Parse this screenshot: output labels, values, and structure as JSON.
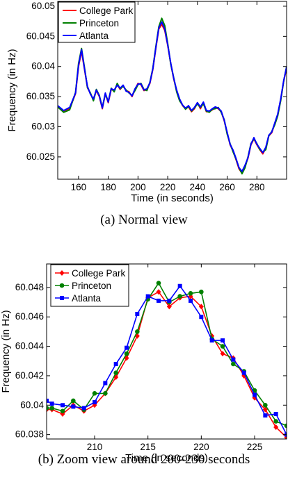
{
  "figure": {
    "caption_a": "(a)  Normal view",
    "caption_b": "(b)  Zoom view around 200-230 seconds"
  },
  "chart_data": [
    {
      "type": "line",
      "xlabel": "Time (in seconds)",
      "ylabel": "Frequency (in Hz)",
      "xlim": [
        146,
        300
      ],
      "ylim": [
        60.0213,
        60.0508
      ],
      "xticks": [
        160,
        180,
        200,
        220,
        240,
        260,
        280
      ],
      "yticks": [
        60.025,
        60.03,
        60.035,
        60.04,
        60.045,
        60.05
      ],
      "ytick_labels": [
        "60.025",
        "60.03",
        "60.035",
        "60.04",
        "60.045",
        "60.05"
      ],
      "grid": false,
      "legend_position": "top-left",
      "markers": false,
      "series": [
        {
          "name": "College Park",
          "color": "#ff0000",
          "x": [
            146,
            150,
            154,
            158,
            160,
            162,
            164,
            166,
            168,
            170,
            172,
            174,
            176,
            178,
            180,
            182,
            184,
            186,
            188,
            190,
            192,
            194,
            196,
            198,
            200,
            202,
            204,
            206,
            208,
            210,
            212,
            214,
            216,
            218,
            220,
            222,
            224,
            226,
            228,
            230,
            232,
            234,
            236,
            238,
            240,
            242,
            244,
            246,
            248,
            250,
            252,
            254,
            256,
            258,
            260,
            262,
            264,
            266,
            268,
            270,
            272,
            274,
            276,
            278,
            280,
            282,
            284,
            286,
            288,
            290,
            292,
            294,
            296,
            298,
            300
          ],
          "y": [
            60.0333,
            60.0325,
            60.033,
            60.0355,
            60.04,
            60.0425,
            60.0395,
            60.0365,
            60.0355,
            60.0345,
            60.036,
            60.035,
            60.033,
            60.0355,
            60.034,
            60.0362,
            60.036,
            60.037,
            60.0362,
            60.0368,
            60.036,
            60.0358,
            60.035,
            60.0362,
            60.0372,
            60.037,
            60.036,
            60.0362,
            60.0372,
            60.0395,
            60.043,
            60.0462,
            60.047,
            60.046,
            60.0435,
            60.0405,
            60.038,
            60.036,
            60.0345,
            60.0335,
            60.033,
            60.0333,
            60.0325,
            60.033,
            60.034,
            60.033,
            60.034,
            60.0325,
            60.0325,
            60.0328,
            60.0332,
            60.033,
            60.0325,
            60.031,
            60.029,
            60.027,
            60.026,
            60.0245,
            60.023,
            60.0223,
            60.0235,
            60.0248,
            60.027,
            60.028,
            60.027,
            60.0262,
            60.0255,
            60.0265,
            60.0285,
            60.029,
            60.0305,
            60.032,
            60.0345,
            60.0375,
            60.0397
          ]
        },
        {
          "name": "Princeton",
          "color": "#008000",
          "x": [
            146,
            150,
            154,
            158,
            160,
            162,
            164,
            166,
            168,
            170,
            172,
            174,
            176,
            178,
            180,
            182,
            184,
            186,
            188,
            190,
            192,
            194,
            196,
            198,
            200,
            202,
            204,
            206,
            208,
            210,
            212,
            214,
            216,
            218,
            220,
            222,
            224,
            226,
            228,
            230,
            232,
            234,
            236,
            238,
            240,
            242,
            244,
            246,
            248,
            250,
            252,
            254,
            256,
            258,
            260,
            262,
            264,
            266,
            268,
            270,
            272,
            274,
            276,
            278,
            280,
            282,
            284,
            286,
            288,
            290,
            292,
            294,
            296,
            298,
            300
          ],
          "y": [
            60.0333,
            60.0324,
            60.0328,
            60.0357,
            60.0405,
            60.043,
            60.0398,
            60.0365,
            60.0356,
            60.0343,
            60.0362,
            60.0352,
            60.0332,
            60.0354,
            60.0342,
            60.0364,
            60.0358,
            60.0372,
            60.0363,
            60.0367,
            60.0361,
            60.0356,
            60.0352,
            60.036,
            60.037,
            60.0372,
            60.0362,
            60.036,
            60.0374,
            60.0397,
            60.0433,
            60.0466,
            60.048,
            60.0468,
            60.0438,
            60.0404,
            60.0382,
            60.0358,
            60.0343,
            60.0336,
            60.0329,
            60.0334,
            60.0326,
            60.0331,
            60.0338,
            60.0332,
            60.0338,
            60.0326,
            60.0324,
            60.0329,
            60.033,
            60.0332,
            60.0324,
            60.0312,
            60.0288,
            60.0272,
            60.0258,
            60.0246,
            60.0232,
            60.0222,
            60.0232,
            60.025,
            60.0272,
            60.028,
            60.0272,
            60.0262,
            60.0258,
            60.0262,
            60.0285,
            60.0292,
            60.0303,
            60.0318,
            60.0343,
            60.0375,
            60.04
          ]
        },
        {
          "name": "Atlanta",
          "color": "#0000ff",
          "x": [
            146,
            150,
            154,
            158,
            160,
            162,
            164,
            166,
            168,
            170,
            172,
            174,
            176,
            178,
            180,
            182,
            184,
            186,
            188,
            190,
            192,
            194,
            196,
            198,
            200,
            202,
            204,
            206,
            208,
            210,
            212,
            214,
            216,
            218,
            220,
            222,
            224,
            226,
            228,
            230,
            232,
            234,
            236,
            238,
            240,
            242,
            244,
            246,
            248,
            250,
            252,
            254,
            256,
            258,
            260,
            262,
            264,
            266,
            268,
            270,
            272,
            274,
            276,
            278,
            280,
            282,
            284,
            286,
            288,
            290,
            292,
            294,
            296,
            298,
            300
          ],
          "y": [
            60.0335,
            60.0327,
            60.0332,
            60.0356,
            60.0402,
            60.0428,
            60.0396,
            60.0367,
            60.0354,
            60.0346,
            60.0361,
            60.0351,
            60.0331,
            60.0356,
            60.0341,
            60.0363,
            60.0361,
            60.0369,
            60.0364,
            60.0369,
            60.0359,
            60.0357,
            60.0351,
            60.0363,
            60.0371,
            60.0371,
            60.0361,
            60.0363,
            60.0373,
            60.0396,
            60.0431,
            60.0464,
            60.0474,
            60.0462,
            60.0436,
            60.0406,
            60.0381,
            60.0361,
            60.0346,
            60.0336,
            60.0331,
            60.0335,
            60.0327,
            60.0332,
            60.034,
            60.0333,
            60.0341,
            60.0327,
            60.0326,
            60.033,
            60.0333,
            60.0331,
            60.0326,
            60.0311,
            60.0291,
            60.0271,
            60.0261,
            60.0247,
            60.0232,
            60.0226,
            60.0236,
            60.0249,
            60.0271,
            60.0282,
            60.0271,
            60.0264,
            60.0257,
            60.0266,
            60.0286,
            60.0291,
            60.0306,
            60.0321,
            60.0346,
            60.0376,
            60.0399
          ]
        }
      ]
    },
    {
      "type": "line",
      "xlabel": "Time (in seconds)",
      "ylabel": "Frequency (in Hz)",
      "xlim": [
        205.5,
        228
      ],
      "ylim": [
        60.0377,
        60.0496
      ],
      "xticks": [
        210,
        215,
        220,
        225
      ],
      "yticks": [
        60.038,
        60.04,
        60.042,
        60.044,
        60.046,
        60.048
      ],
      "ytick_labels": [
        "60.038",
        "60.04",
        "60.042",
        "60.044",
        "60.046",
        "60.048"
      ],
      "grid": false,
      "legend_position": "top-left",
      "markers": true,
      "series": [
        {
          "name": "College Park",
          "color": "#ff0000",
          "marker": "diamond",
          "x": [
            205.5,
            206,
            207,
            208,
            209,
            210,
            211,
            212,
            213,
            214,
            215,
            216,
            217,
            218,
            219,
            220,
            221,
            222,
            223,
            224,
            225,
            226,
            227,
            228
          ],
          "y": [
            60.0397,
            60.0397,
            60.0394,
            60.04,
            60.0396,
            60.04,
            60.0408,
            60.0419,
            60.0432,
            60.0447,
            60.0473,
            60.0477,
            60.0467,
            60.0473,
            60.0474,
            60.0467,
            60.0447,
            60.0435,
            60.0432,
            60.042,
            60.0405,
            60.0397,
            60.0385,
            60.0378
          ]
        },
        {
          "name": "Princeton",
          "color": "#008000",
          "marker": "circle",
          "x": [
            205.5,
            206,
            207,
            208,
            209,
            210,
            211,
            212,
            213,
            214,
            215,
            216,
            217,
            218,
            219,
            220,
            221,
            222,
            223,
            224,
            225,
            226,
            227,
            228
          ],
          "y": [
            60.0398,
            60.0398,
            60.0396,
            60.0403,
            60.0397,
            60.0408,
            60.0408,
            60.0422,
            60.0435,
            60.045,
            60.0472,
            60.0483,
            60.047,
            60.0474,
            60.0476,
            60.0477,
            60.0445,
            60.044,
            60.0428,
            60.0423,
            60.041,
            60.04,
            60.0389,
            60.0386
          ]
        },
        {
          "name": "Atlanta",
          "color": "#0000ff",
          "marker": "square",
          "x": [
            205.5,
            206,
            207,
            208,
            209,
            210,
            211,
            212,
            213,
            214,
            215,
            216,
            217,
            218,
            219,
            220,
            221,
            222,
            223,
            224,
            225,
            226,
            227,
            228
          ],
          "y": [
            60.0403,
            60.0401,
            60.04,
            60.0399,
            60.0398,
            60.0402,
            60.0415,
            60.0428,
            60.0439,
            60.0462,
            60.0474,
            60.0471,
            60.0471,
            60.0481,
            60.0471,
            60.046,
            60.0444,
            60.0444,
            60.0431,
            60.0422,
            60.0407,
            60.0393,
            60.0394,
            60.038
          ]
        }
      ]
    }
  ]
}
